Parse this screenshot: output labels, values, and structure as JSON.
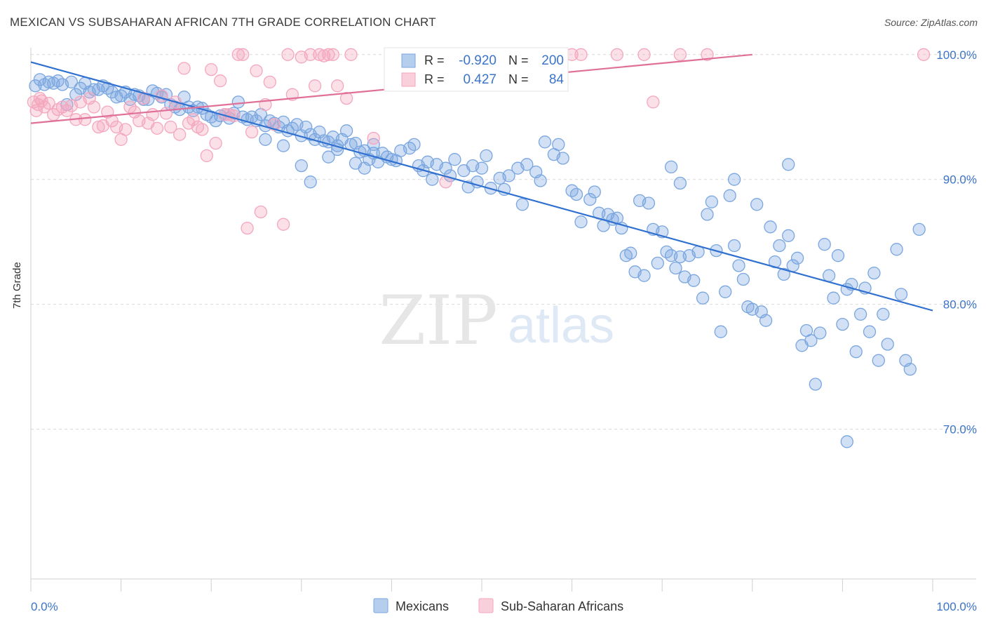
{
  "title": "MEXICAN VS SUBSAHARAN AFRICAN 7TH GRADE CORRELATION CHART",
  "source": "Source: ZipAtlas.com",
  "watermark": {
    "zip": "ZIP",
    "atlas": "atlas"
  },
  "chart_data": {
    "type": "scatter",
    "ylabel": "7th Grade",
    "xlim": [
      0,
      100
    ],
    "ylim": [
      58,
      101
    ],
    "x_tick_labels": [
      "0.0%",
      "100.0%"
    ],
    "y_ticks": [
      70,
      80,
      90,
      100
    ],
    "y_tick_labels": [
      "70.0%",
      "80.0%",
      "90.0%",
      "100.0%"
    ],
    "grid": true,
    "legend_position": "top-center",
    "bottom_legend": [
      "Mexicans",
      "Sub-Saharan Africans"
    ],
    "series": [
      {
        "name": "Mexicans",
        "color": "#7aa6e0",
        "line_color": "#3070d0",
        "stats": {
          "r_label": "R =",
          "r": "-0.920",
          "n_label": "N =",
          "n": "200"
        },
        "trend": {
          "x": [
            0,
            100
          ],
          "y": [
            99.4,
            79.5
          ]
        },
        "points": [
          [
            0.5,
            97.5
          ],
          [
            1,
            98
          ],
          [
            1.5,
            97.6
          ],
          [
            2,
            97.8
          ],
          [
            2.5,
            97.7
          ],
          [
            3,
            97.9
          ],
          [
            3.5,
            97.6
          ],
          [
            4,
            96
          ],
          [
            4.5,
            97.8
          ],
          [
            5,
            96.8
          ],
          [
            5.5,
            97.3
          ],
          [
            6,
            97.7
          ],
          [
            6.5,
            97
          ],
          [
            7,
            97.2
          ],
          [
            7.5,
            97.2
          ],
          [
            8,
            97.5
          ],
          [
            8.5,
            97.3
          ],
          [
            9,
            97
          ],
          [
            9.5,
            96.6
          ],
          [
            10,
            96.7
          ],
          [
            10.5,
            97
          ],
          [
            11,
            96.4
          ],
          [
            11.5,
            96.8
          ],
          [
            12,
            96.7
          ],
          [
            12.5,
            96.4
          ],
          [
            13,
            96.4
          ],
          [
            13.5,
            97.1
          ],
          [
            14,
            96.9
          ],
          [
            14.5,
            96.6
          ],
          [
            15,
            96.8
          ],
          [
            15.5,
            96
          ],
          [
            16,
            95.8
          ],
          [
            16.5,
            95.6
          ],
          [
            17,
            96.6
          ],
          [
            17.5,
            95.8
          ],
          [
            18,
            95.5
          ],
          [
            18.5,
            95.8
          ],
          [
            19,
            95.7
          ],
          [
            19.5,
            95.2
          ],
          [
            20,
            95
          ],
          [
            20.5,
            94.7
          ],
          [
            21,
            95.1
          ],
          [
            21.5,
            95.2
          ],
          [
            22,
            94.9
          ],
          [
            22.5,
            95.3
          ],
          [
            23,
            96.2
          ],
          [
            23.5,
            95
          ],
          [
            24,
            94.8
          ],
          [
            24.5,
            95
          ],
          [
            25,
            94.7
          ],
          [
            25.5,
            95.2
          ],
          [
            26,
            94.3
          ],
          [
            26.5,
            94.7
          ],
          [
            27,
            94.5
          ],
          [
            27.5,
            94.2
          ],
          [
            28,
            94.6
          ],
          [
            28.5,
            93.9
          ],
          [
            29,
            94.1
          ],
          [
            29.5,
            94.4
          ],
          [
            30,
            93.5
          ],
          [
            30.5,
            94.2
          ],
          [
            31,
            93.6
          ],
          [
            31.5,
            93.2
          ],
          [
            32,
            93.8
          ],
          [
            32.5,
            93.1
          ],
          [
            33,
            93
          ],
          [
            33.5,
            93.4
          ],
          [
            34,
            92.7
          ],
          [
            34.5,
            93.2
          ],
          [
            35,
            93.9
          ],
          [
            35.5,
            92.8
          ],
          [
            36,
            92.9
          ],
          [
            36.5,
            92.2
          ],
          [
            37,
            92.3
          ],
          [
            37.5,
            91.6
          ],
          [
            38,
            92.8
          ],
          [
            38.5,
            91.4
          ],
          [
            39,
            92.1
          ],
          [
            39.5,
            91.8
          ],
          [
            40,
            91.6
          ],
          [
            26,
            93.2
          ],
          [
            28,
            92.7
          ],
          [
            30,
            91.1
          ],
          [
            31,
            89.8
          ],
          [
            33,
            91.8
          ],
          [
            34,
            92.4
          ],
          [
            36,
            91.3
          ],
          [
            37,
            90.9
          ],
          [
            38,
            92.1
          ],
          [
            40.5,
            91.5
          ],
          [
            41,
            92.3
          ],
          [
            42,
            92.5
          ],
          [
            42.5,
            92.8
          ],
          [
            43,
            91.1
          ],
          [
            43.5,
            90.7
          ],
          [
            44,
            91.4
          ],
          [
            44.5,
            90
          ],
          [
            45,
            91.2
          ],
          [
            46,
            90.9
          ],
          [
            46.5,
            90.3
          ],
          [
            47,
            91.6
          ],
          [
            48,
            90.7
          ],
          [
            48.5,
            89.4
          ],
          [
            49,
            91.1
          ],
          [
            49.5,
            89.8
          ],
          [
            50,
            90.9
          ],
          [
            50.5,
            91.9
          ],
          [
            51,
            89.3
          ],
          [
            52,
            90.1
          ],
          [
            52.5,
            89.2
          ],
          [
            53,
            90.3
          ],
          [
            54,
            90.9
          ],
          [
            54.5,
            88
          ],
          [
            55,
            91.2
          ],
          [
            56,
            90.6
          ],
          [
            56.5,
            89.9
          ],
          [
            57,
            93
          ],
          [
            58,
            92
          ],
          [
            58.5,
            92.8
          ],
          [
            59,
            91.7
          ],
          [
            60,
            89.1
          ],
          [
            60.5,
            88.8
          ],
          [
            61,
            86.6
          ],
          [
            62,
            88.4
          ],
          [
            62.5,
            89
          ],
          [
            63,
            87.3
          ],
          [
            63.5,
            86.3
          ],
          [
            64,
            87.2
          ],
          [
            64.5,
            86.8
          ],
          [
            65,
            86.9
          ],
          [
            65.5,
            86.1
          ],
          [
            66,
            83.9
          ],
          [
            66.5,
            84.1
          ],
          [
            67,
            82.6
          ],
          [
            67.5,
            88.3
          ],
          [
            68,
            82.3
          ],
          [
            68.5,
            88.1
          ],
          [
            69,
            86
          ],
          [
            69.5,
            83.3
          ],
          [
            70,
            85.8
          ],
          [
            70.5,
            84.2
          ],
          [
            71,
            83.9
          ],
          [
            71.5,
            82.9
          ],
          [
            72,
            83.8
          ],
          [
            72.5,
            82.2
          ],
          [
            73,
            83.9
          ],
          [
            73.5,
            81.9
          ],
          [
            74,
            84.2
          ],
          [
            74.5,
            80.5
          ],
          [
            75,
            87.2
          ],
          [
            75.5,
            88.2
          ],
          [
            76,
            84.3
          ],
          [
            76.5,
            77.8
          ],
          [
            77,
            81
          ],
          [
            77.5,
            88.7
          ],
          [
            78,
            84.7
          ],
          [
            78.5,
            83.1
          ],
          [
            79,
            82
          ],
          [
            79.5,
            79.8
          ],
          [
            80,
            79.6
          ],
          [
            80.5,
            88
          ],
          [
            81,
            79.4
          ],
          [
            81.5,
            78.7
          ],
          [
            82,
            86.2
          ],
          [
            82.5,
            83.4
          ],
          [
            83,
            84.7
          ],
          [
            83.5,
            82.4
          ],
          [
            84,
            85.5
          ],
          [
            84.5,
            83.1
          ],
          [
            85,
            83.7
          ],
          [
            85.5,
            76.7
          ],
          [
            86,
            77.9
          ],
          [
            86.5,
            77.1
          ],
          [
            87,
            73.6
          ],
          [
            87.5,
            77.7
          ],
          [
            88,
            84.8
          ],
          [
            88.5,
            82.3
          ],
          [
            89,
            80.5
          ],
          [
            89.5,
            83.9
          ],
          [
            90,
            78.4
          ],
          [
            90.5,
            81.2
          ],
          [
            91,
            81.6
          ],
          [
            91.5,
            76.2
          ],
          [
            92,
            79.2
          ],
          [
            92.5,
            81.3
          ],
          [
            93,
            77.8
          ],
          [
            93.5,
            82.5
          ],
          [
            94,
            75.5
          ],
          [
            94.5,
            79.2
          ],
          [
            95,
            76.8
          ],
          [
            71,
            91
          ],
          [
            72,
            89.7
          ],
          [
            78,
            90
          ],
          [
            84,
            91.2
          ],
          [
            90.5,
            69
          ],
          [
            96,
            84.4
          ],
          [
            96.5,
            80.8
          ],
          [
            97,
            75.5
          ],
          [
            97.5,
            74.8
          ],
          [
            98.5,
            86
          ]
        ]
      },
      {
        "name": "Sub-Saharan Africans",
        "color": "#f4a7be",
        "line_color": "#e07098",
        "stats": {
          "r_label": "R =",
          "r": "0.427",
          "n_label": "N =",
          "n": "84"
        },
        "trend": {
          "x": [
            0,
            80
          ],
          "y": [
            94.5,
            100
          ]
        },
        "points": [
          [
            0.3,
            96.2
          ],
          [
            0.6,
            95.5
          ],
          [
            1,
            96.5
          ],
          [
            1.5,
            95.8
          ],
          [
            2,
            96.1
          ],
          [
            2.5,
            95.2
          ],
          [
            3,
            95.6
          ],
          [
            3.5,
            95.8
          ],
          [
            4,
            95.5
          ],
          [
            4.5,
            95.9
          ],
          [
            5,
            94.8
          ],
          [
            5.5,
            96.2
          ],
          [
            6,
            94.8
          ],
          [
            6.5,
            96.5
          ],
          [
            7,
            95.8
          ],
          [
            7.5,
            94.2
          ],
          [
            8,
            94.3
          ],
          [
            8.5,
            95.4
          ],
          [
            9,
            94.7
          ],
          [
            9.5,
            94.2
          ],
          [
            10,
            93.2
          ],
          [
            10.5,
            94
          ],
          [
            11,
            95.8
          ],
          [
            11.5,
            95.4
          ],
          [
            12,
            94.7
          ],
          [
            12.5,
            96.5
          ],
          [
            13,
            94.5
          ],
          [
            13.5,
            95.2
          ],
          [
            14,
            94.1
          ],
          [
            14.5,
            96.7
          ],
          [
            15,
            95.3
          ],
          [
            15.5,
            94.2
          ],
          [
            16,
            96.2
          ],
          [
            16.5,
            93.6
          ],
          [
            17,
            98.9
          ],
          [
            17.5,
            94.5
          ],
          [
            18,
            94.8
          ],
          [
            18.5,
            94.2
          ],
          [
            19,
            94
          ],
          [
            19.5,
            91.9
          ],
          [
            20,
            98.8
          ],
          [
            20.5,
            92.9
          ],
          [
            21,
            97.9
          ],
          [
            21.5,
            95.2
          ],
          [
            22,
            95.2
          ],
          [
            22.5,
            95.1
          ],
          [
            23,
            100
          ],
          [
            23.5,
            100
          ],
          [
            24,
            86.1
          ],
          [
            24.5,
            93.8
          ],
          [
            25,
            98.7
          ],
          [
            25.5,
            87.4
          ],
          [
            26,
            96
          ],
          [
            26.5,
            97.8
          ],
          [
            27,
            94.4
          ],
          [
            28,
            86.4
          ],
          [
            28.5,
            100
          ],
          [
            29,
            96.8
          ],
          [
            30,
            99.8
          ],
          [
            31,
            100
          ],
          [
            31.5,
            97.5
          ],
          [
            32,
            100
          ],
          [
            32.5,
            99.9
          ],
          [
            33,
            100
          ],
          [
            33.5,
            100
          ],
          [
            34,
            97.5
          ],
          [
            35,
            96.5
          ],
          [
            35.5,
            100
          ],
          [
            38,
            93.3
          ],
          [
            46,
            89.8
          ],
          [
            54,
            100
          ],
          [
            55,
            100
          ],
          [
            56,
            100
          ],
          [
            58,
            100
          ],
          [
            60,
            100
          ],
          [
            61,
            100
          ],
          [
            65,
            100
          ],
          [
            68,
            100
          ],
          [
            69,
            96.2
          ],
          [
            72,
            100
          ],
          [
            75,
            100
          ],
          [
            99,
            100
          ],
          [
            0.8,
            96
          ],
          [
            1.2,
            96.3
          ]
        ]
      }
    ]
  }
}
